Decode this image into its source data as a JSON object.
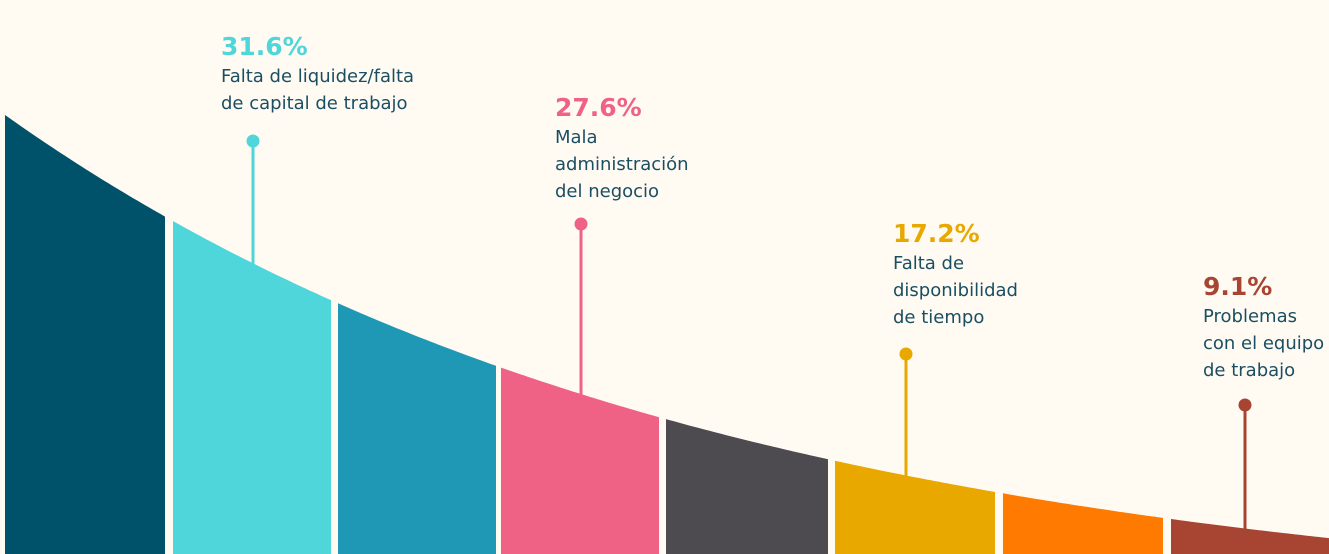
{
  "callouts": [
    {
      "value": "31.6%",
      "lines": [
        "Falta de liquidez/falta",
        "de capital de trabajo"
      ]
    },
    {
      "value": "27.6%",
      "lines": [
        "Mala",
        "administración",
        "del negocio"
      ]
    },
    {
      "value": "17.2%",
      "lines": [
        "Falta de",
        "disponibilidad",
        "de tiempo"
      ]
    },
    {
      "value": "9.1%",
      "lines": [
        "Problemas",
        "con el equipo",
        "de trabajo"
      ]
    }
  ]
}
